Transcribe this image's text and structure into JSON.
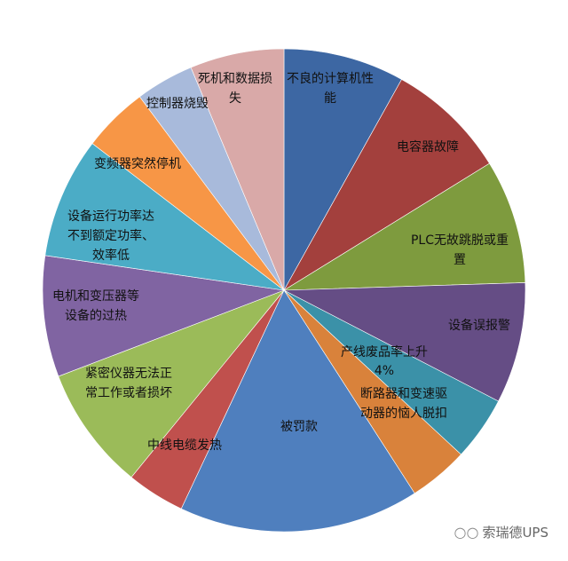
{
  "chart_data": {
    "type": "pie",
    "start": "12 o'clock, clockwise",
    "labels": [
      "不良的计算机性\n能",
      "电容器故障",
      "PLC无故跳脱或重\n置",
      "设备误报警",
      "产线废品率上升",
      "断路器和变速驱\n动器的恼人脱扣",
      "被罚款",
      "中线电缆发热",
      "紧密仪器无法正\n常工作或者损坏",
      "电机和变压器等\n设备的过热",
      "设备运行功率达\n不到额定功率、\n效率低",
      "变频器突然停机",
      "控制器烧毁",
      "死机和数据损\n失"
    ],
    "values": [
      8.1,
      8.1,
      8.3,
      8.1,
      4.3,
      4.0,
      16.1,
      3.9,
      8.3,
      8.1,
      8.1,
      4.4,
      3.9,
      6.3
    ],
    "data_labels": {
      "4": "4%"
    },
    "colors": [
      "#3d67a3",
      "#a3403d",
      "#7e9b3e",
      "#654d85",
      "#3b91a8",
      "#d9823b",
      "#4f7fbe",
      "#c0504d",
      "#9bbb59",
      "#8064a2",
      "#4bacc6",
      "#f79646",
      "#a8badb",
      "#d9a9a8"
    ],
    "unit": "%"
  },
  "watermark": {
    "text": "索瑞德UPS",
    "icon": "wechat-icon"
  }
}
